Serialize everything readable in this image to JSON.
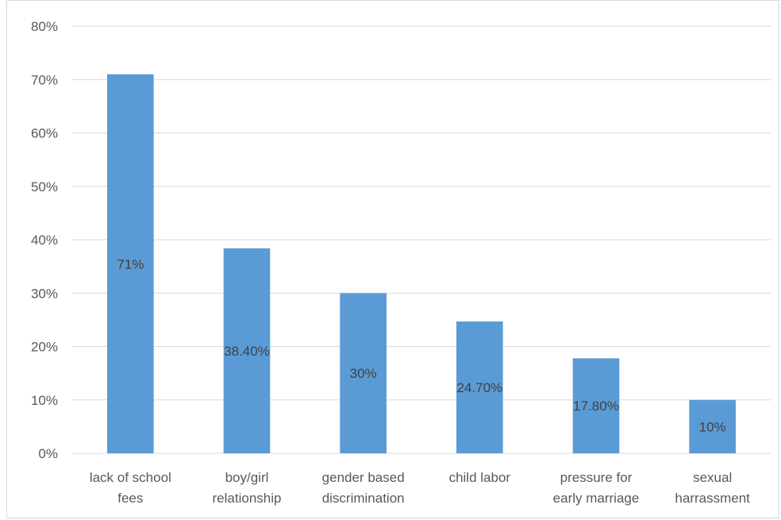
{
  "chart_data": {
    "type": "bar",
    "categories": [
      [
        "lack of school",
        "fees"
      ],
      [
        "boy/girl",
        "relationship"
      ],
      [
        "gender based",
        "discrimination"
      ],
      [
        "child labor"
      ],
      [
        "pressure for",
        "early marriage"
      ],
      [
        "sexual",
        "harrassment"
      ]
    ],
    "values": [
      71,
      38.4,
      30,
      24.7,
      17.8,
      10
    ],
    "data_labels": [
      "71%",
      "38.40%",
      "30%",
      "24.70%",
      "17.80%",
      "10%"
    ],
    "yticks": [
      "0%",
      "10%",
      "20%",
      "30%",
      "40%",
      "50%",
      "60%",
      "70%",
      "80%"
    ],
    "ylim": [
      0,
      80
    ],
    "grid": true,
    "bar_color": "#5b9bd5",
    "gridline_color": "#d9d9d9",
    "legend": false
  }
}
